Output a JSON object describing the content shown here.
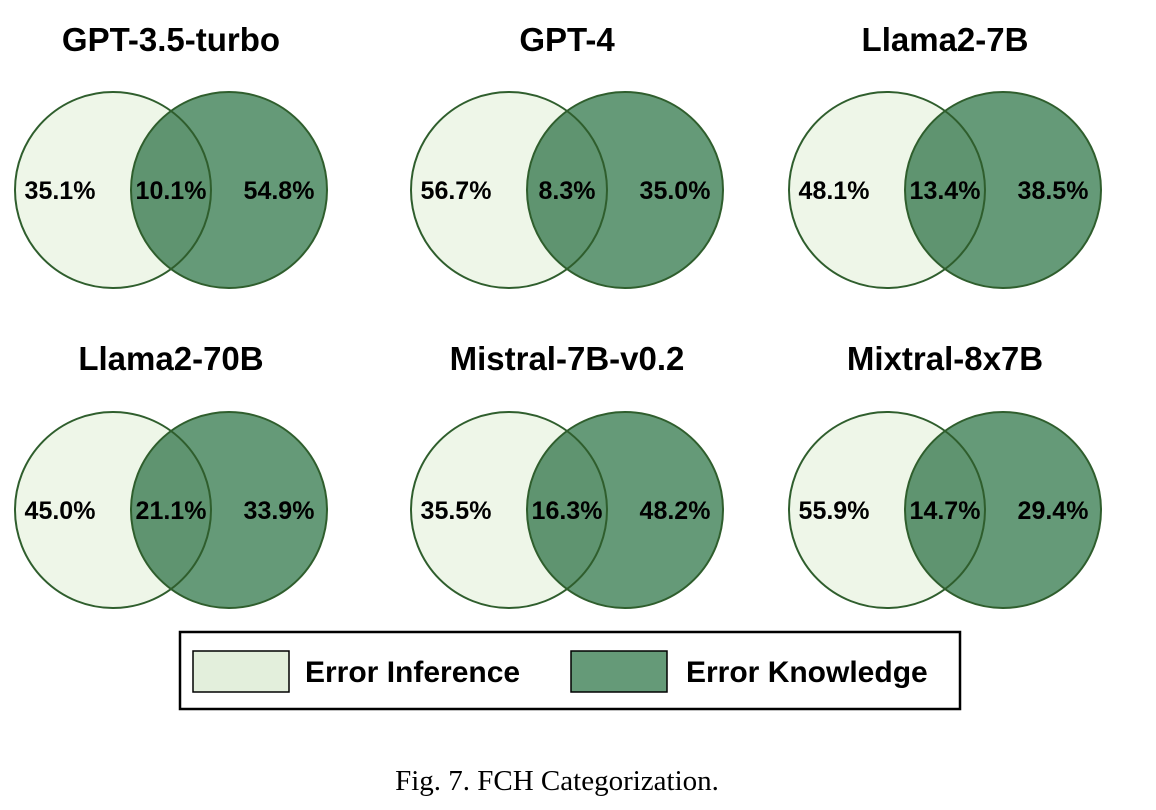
{
  "chart_data": {
    "type": "venn",
    "sets": [
      "Error Inference",
      "Error Knowledge"
    ],
    "colors": {
      "error_inference": "#eef6e8",
      "error_knowledge": "#659a78",
      "overlap": "#5f9470",
      "outline": "#2f5e2d"
    },
    "panels": [
      {
        "title": "GPT-3.5-turbo",
        "inference_only": "35.1%",
        "overlap": "10.1%",
        "knowledge_only": "54.8%"
      },
      {
        "title": "GPT-4",
        "inference_only": "56.7%",
        "overlap": "8.3%",
        "knowledge_only": "35.0%"
      },
      {
        "title": "Llama2-7B",
        "inference_only": "48.1%",
        "overlap": "13.4%",
        "knowledge_only": "38.5%"
      },
      {
        "title": "Llama2-70B",
        "inference_only": "45.0%",
        "overlap": "21.1%",
        "knowledge_only": "33.9%"
      },
      {
        "title": "Mistral-7B-v0.2",
        "inference_only": "35.5%",
        "overlap": "16.3%",
        "knowledge_only": "48.2%"
      },
      {
        "title": "Mixtral-8x7B",
        "inference_only": "55.9%",
        "overlap": "14.7%",
        "knowledge_only": "29.4%"
      }
    ],
    "legend": {
      "items": [
        {
          "label": "Error Inference",
          "color": "#e3efdc"
        },
        {
          "label": "Error Knowledge",
          "color": "#659a78"
        }
      ],
      "placement": "bottom-center"
    }
  },
  "caption": "Fig. 7.  FCH Categorization."
}
